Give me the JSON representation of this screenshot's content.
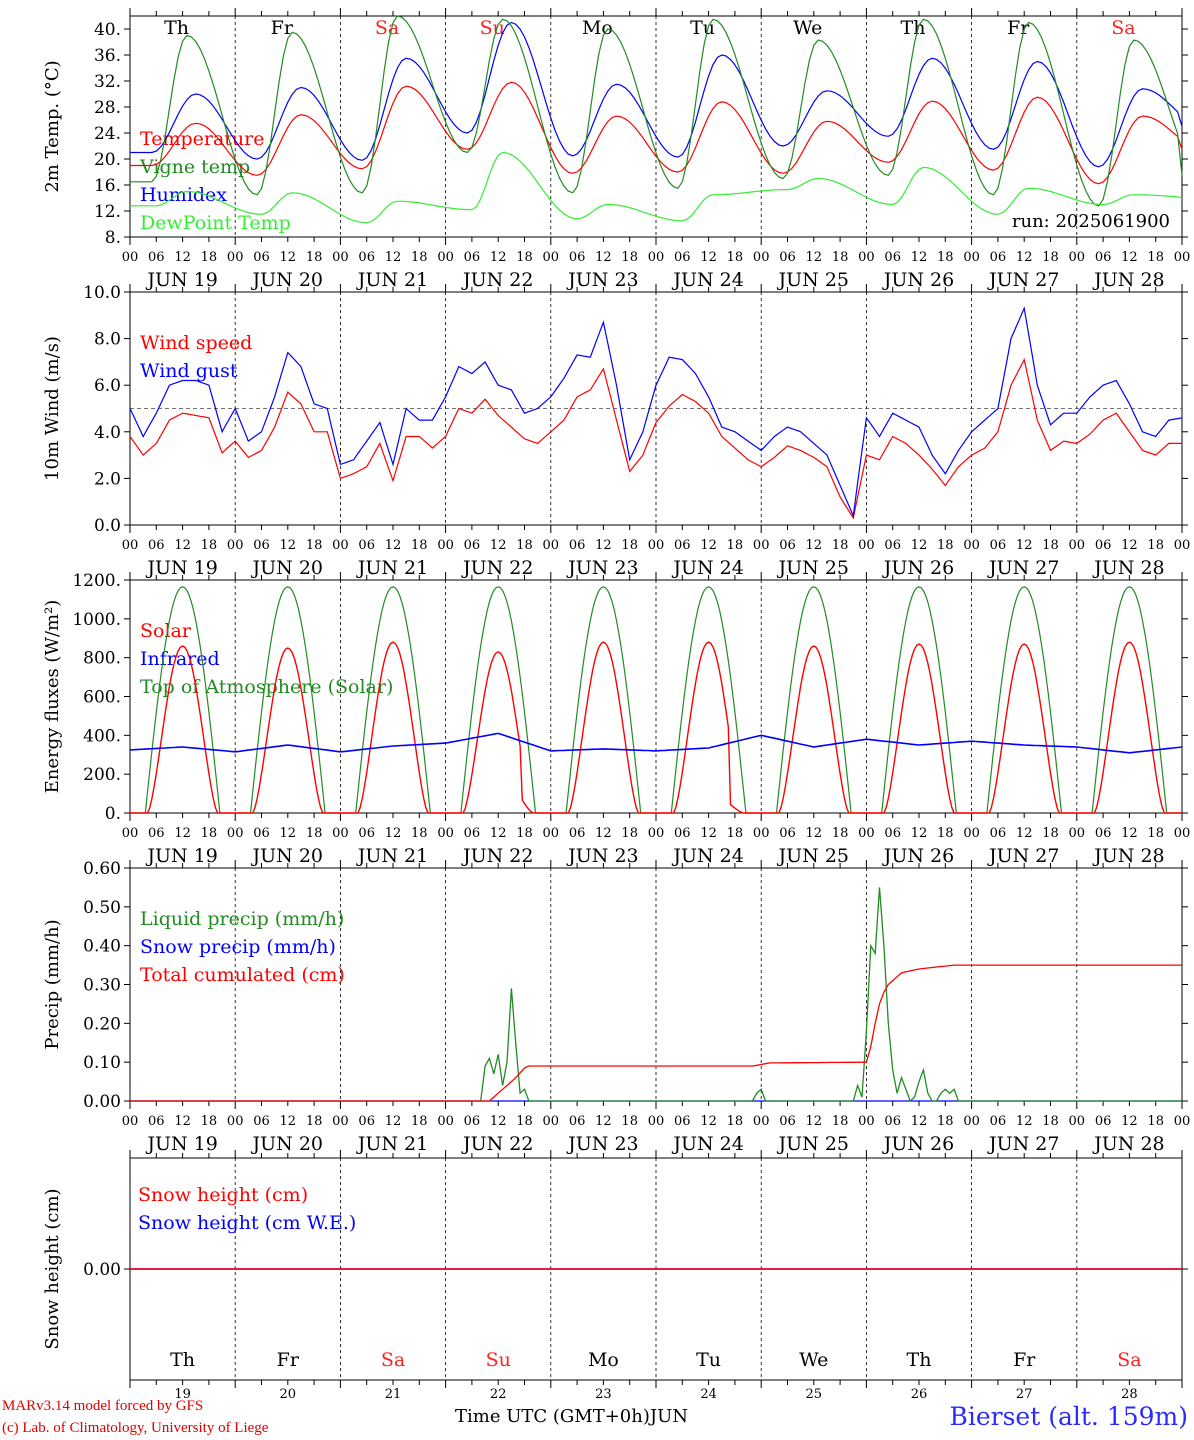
{
  "colors": {
    "red": "#ff0000",
    "blue": "#0000ff",
    "green": "#228b22",
    "lime": "#33ee33",
    "weekend": "#ff2020",
    "text": "#000000"
  },
  "days": {
    "weekdays": [
      "Th",
      "Fr",
      "Sa",
      "Su",
      "Mo",
      "Tu",
      "We",
      "Th",
      "Fr",
      "Sa"
    ],
    "weekend_flags": [
      false,
      false,
      true,
      true,
      false,
      false,
      false,
      false,
      false,
      true
    ],
    "dates": [
      "JUN 19",
      "JUN 20",
      "JUN 21",
      "JUN 22",
      "JUN 23",
      "JUN 24",
      "JUN 25",
      "JUN 26",
      "JUN 27",
      "JUN 28"
    ],
    "day_numbers": [
      "19",
      "20",
      "21",
      "22",
      "23",
      "24",
      "25",
      "26",
      "27",
      "28"
    ],
    "hour_ticks": [
      "00",
      "06",
      "12",
      "18"
    ],
    "final_tick": "00"
  },
  "footer": {
    "model_line": "MARv3.14 model forced by GFS",
    "lab_line": "(c) Lab. of Climatology, University of Liege",
    "time_label": "Time UTC (GMT+0h)",
    "month": "JUN",
    "station": "Bierset (alt. 159m)"
  },
  "chart_data": [
    {
      "type": "line",
      "ylabel": "2m Temp. (°C)",
      "ylim": [
        8,
        42
      ],
      "yticks": [
        "8.",
        "12.",
        "16.",
        "20.",
        "24.",
        "28.",
        "32.",
        "36.",
        "40."
      ],
      "run_label": "run: 2025061900",
      "x_unit": "hours since JUN 19 00 UTC",
      "legend": [
        "Temperature",
        "Vigne temp",
        "Humidex",
        "DewPoint Temp"
      ],
      "series": [
        {
          "name": "Temperature",
          "color": "red",
          "daily_min": [
            19.0,
            17.5,
            18.5,
            21.5,
            17.8,
            18.0,
            17.8,
            19.5,
            18.3,
            16.2
          ],
          "daily_max": [
            25.5,
            26.8,
            31.2,
            31.8,
            26.6,
            28.8,
            25.8,
            28.9,
            29.5,
            26.6
          ],
          "final": 21.5
        },
        {
          "name": "Humidex",
          "color": "blue",
          "daily_min": [
            21.0,
            20.0,
            19.8,
            24.0,
            20.5,
            20.3,
            22.0,
            23.5,
            21.5,
            18.8
          ],
          "daily_max": [
            30.0,
            31.0,
            35.5,
            41.0,
            31.5,
            36.0,
            30.5,
            35.5,
            35.0,
            30.8
          ],
          "final": 25.0
        },
        {
          "name": "Vigne temp",
          "color": "green",
          "daily_min": [
            16.5,
            14.5,
            14.8,
            21.0,
            14.8,
            15.5,
            17.0,
            17.5,
            14.5,
            12.8
          ],
          "daily_max": [
            39.0,
            39.5,
            42.0,
            41.5,
            40.0,
            41.5,
            38.3,
            41.5,
            41.0,
            38.3
          ],
          "final": 17.5
        },
        {
          "name": "DewPoint Temp",
          "color": "lime",
          "daily_min": [
            12.8,
            11.5,
            10.2,
            12.2,
            10.8,
            10.5,
            15.3,
            13.0,
            11.5,
            13.0
          ],
          "daily_max": [
            15.0,
            14.8,
            13.5,
            21.0,
            13.0,
            14.5,
            17.0,
            18.7,
            15.5,
            14.5
          ],
          "final": 14.0
        }
      ]
    },
    {
      "type": "line",
      "ylabel": "10m Wind (m/s)",
      "ylim": [
        0,
        10
      ],
      "yticks": [
        "0.0",
        "2.0",
        "4.0",
        "6.0",
        "8.0",
        "10.0"
      ],
      "reference_line": 5.0,
      "legend": [
        "Wind speed",
        "Wind gust"
      ],
      "series": [
        {
          "name": "Wind speed",
          "color": "red",
          "x": [
            0,
            3,
            6,
            9,
            12,
            15,
            18,
            21,
            24,
            27,
            30,
            33,
            36,
            39,
            42,
            45,
            48,
            51,
            54,
            57,
            60,
            63,
            66,
            69,
            72,
            75,
            78,
            81,
            84,
            87,
            90,
            93,
            96,
            99,
            102,
            105,
            108,
            111,
            114,
            117,
            120,
            123,
            126,
            129,
            132,
            135,
            138,
            141,
            144,
            147,
            150,
            153,
            156,
            159,
            162,
            165,
            168,
            171,
            174,
            177,
            180,
            183,
            186,
            189,
            192,
            195,
            198,
            201,
            204,
            207,
            210,
            213,
            216,
            219,
            222,
            225,
            228,
            231,
            234,
            237,
            240
          ],
          "values": [
            3.8,
            3.0,
            3.5,
            4.5,
            4.8,
            4.7,
            4.6,
            3.1,
            3.6,
            2.9,
            3.2,
            4.2,
            5.7,
            5.2,
            4.0,
            4.0,
            2.0,
            2.2,
            2.5,
            3.5,
            1.9,
            3.8,
            3.8,
            3.3,
            3.8,
            5.0,
            4.8,
            5.4,
            4.7,
            4.2,
            3.7,
            3.5,
            4.0,
            4.5,
            5.5,
            5.8,
            6.7,
            4.5,
            2.3,
            3.0,
            4.4,
            5.1,
            5.6,
            5.3,
            4.8,
            3.8,
            3.3,
            2.8,
            2.5,
            2.9,
            3.4,
            3.2,
            2.9,
            2.5,
            1.2,
            0.3,
            3.0,
            2.8,
            3.8,
            3.5,
            3.0,
            2.4,
            1.7,
            2.5,
            3.0,
            3.3,
            4.0,
            6.0,
            7.1,
            4.5,
            3.2,
            3.6,
            3.5,
            3.9,
            4.5,
            4.8,
            4.0,
            3.2,
            3.0,
            3.5,
            3.5
          ]
        },
        {
          "name": "Wind gust",
          "color": "blue",
          "x": [
            0,
            3,
            6,
            9,
            12,
            15,
            18,
            21,
            24,
            27,
            30,
            33,
            36,
            39,
            42,
            45,
            48,
            51,
            54,
            57,
            60,
            63,
            66,
            69,
            72,
            75,
            78,
            81,
            84,
            87,
            90,
            93,
            96,
            99,
            102,
            105,
            108,
            111,
            114,
            117,
            120,
            123,
            126,
            129,
            132,
            135,
            138,
            141,
            144,
            147,
            150,
            153,
            156,
            159,
            162,
            165,
            168,
            171,
            174,
            177,
            180,
            183,
            186,
            189,
            192,
            195,
            198,
            201,
            204,
            207,
            210,
            213,
            216,
            219,
            222,
            225,
            228,
            231,
            234,
            237,
            240
          ],
          "values": [
            5.0,
            3.8,
            4.8,
            6.0,
            6.2,
            6.2,
            6.0,
            4.0,
            5.0,
            3.6,
            4.0,
            5.5,
            7.4,
            6.8,
            5.2,
            5.0,
            2.6,
            2.8,
            3.6,
            4.4,
            2.6,
            5.0,
            4.5,
            4.5,
            5.5,
            6.8,
            6.5,
            7.0,
            6.0,
            5.8,
            4.8,
            5.0,
            5.5,
            6.3,
            7.3,
            7.2,
            8.7,
            6.0,
            2.8,
            4.0,
            6.0,
            7.2,
            7.1,
            6.5,
            5.5,
            4.2,
            4.0,
            3.6,
            3.2,
            3.8,
            4.2,
            4.0,
            3.5,
            3.0,
            1.7,
            0.4,
            4.6,
            3.8,
            4.8,
            4.5,
            4.2,
            3.0,
            2.2,
            3.2,
            4.0,
            4.5,
            5.0,
            8.0,
            9.3,
            6.0,
            4.3,
            4.8,
            4.8,
            5.5,
            6.0,
            6.2,
            5.2,
            4.0,
            3.8,
            4.5,
            4.6
          ]
        }
      ]
    },
    {
      "type": "line",
      "ylabel": "Energy fluxes (W/m²)",
      "ylim": [
        0,
        1200
      ],
      "yticks": [
        "0.",
        "200.",
        "400.",
        "600.",
        "800.",
        "1000.",
        "1200."
      ],
      "legend": [
        "Solar",
        "Infrared",
        "Top of Atmosphere (Solar)"
      ],
      "series": [
        {
          "name": "Solar",
          "color": "red",
          "daily_peak": [
            860,
            850,
            880,
            830,
            880,
            880,
            860,
            870,
            870,
            880
          ],
          "note": "drops near 22 18h and 24 18h"
        },
        {
          "name": "Infrared",
          "color": "blue",
          "x": [
            0,
            12,
            24,
            36,
            48,
            60,
            72,
            84,
            96,
            108,
            120,
            132,
            144,
            156,
            168,
            180,
            192,
            204,
            216,
            228,
            240
          ],
          "values": [
            325,
            340,
            315,
            350,
            315,
            345,
            360,
            410,
            320,
            330,
            320,
            335,
            400,
            340,
            380,
            350,
            370,
            350,
            340,
            310,
            340
          ]
        },
        {
          "name": "Top of Atmosphere (Solar)",
          "color": "green",
          "daily_peak": [
            1165,
            1165,
            1165,
            1165,
            1165,
            1165,
            1165,
            1165,
            1165,
            1165
          ]
        }
      ]
    },
    {
      "type": "line",
      "ylabel": "Precip (mm/h)",
      "ylim": [
        0,
        0.6
      ],
      "yticks": [
        "0.00",
        "0.10",
        "0.20",
        "0.30",
        "0.40",
        "0.50",
        "0.60"
      ],
      "legend": [
        "Liquid precip (mm/h)",
        "Snow precip (mm/h)",
        "Total cumulated (cm)"
      ],
      "series": [
        {
          "name": "Liquid precip (mm/h)",
          "color": "green",
          "x": [
            0,
            80,
            81,
            82,
            83,
            84,
            85,
            86,
            87,
            88,
            89,
            90,
            91,
            142,
            143,
            144,
            145,
            165,
            166,
            167,
            168,
            169,
            170,
            171,
            172,
            173,
            174,
            175,
            176,
            177,
            178,
            179,
            180,
            181,
            182,
            183,
            184,
            185,
            186,
            187,
            188,
            189,
            190,
            240
          ],
          "values": [
            0,
            0,
            0.09,
            0.11,
            0.07,
            0.12,
            0.04,
            0.1,
            0.29,
            0.15,
            0.02,
            0.03,
            0,
            0,
            0.02,
            0.03,
            0,
            0,
            0.04,
            0.01,
            0.18,
            0.4,
            0.38,
            0.55,
            0.4,
            0.2,
            0.08,
            0.02,
            0.06,
            0.03,
            0,
            0.01,
            0.05,
            0.08,
            0.02,
            0,
            0,
            0.02,
            0.03,
            0.02,
            0.03,
            0,
            0,
            0
          ]
        },
        {
          "name": "Snow precip (mm/h)",
          "color": "blue",
          "x": [
            0,
            240
          ],
          "values": [
            0,
            0
          ]
        },
        {
          "name": "Total cumulated (cm)",
          "color": "red",
          "x": [
            0,
            82,
            84,
            86,
            88,
            90,
            91,
            142,
            146,
            168,
            169,
            170,
            171,
            172,
            173,
            174,
            175,
            176,
            178,
            180,
            184,
            188,
            192,
            240
          ],
          "values": [
            0,
            0,
            0.02,
            0.04,
            0.06,
            0.085,
            0.09,
            0.09,
            0.098,
            0.1,
            0.14,
            0.2,
            0.25,
            0.28,
            0.3,
            0.31,
            0.32,
            0.33,
            0.335,
            0.34,
            0.345,
            0.35,
            0.35,
            0.35
          ]
        }
      ]
    },
    {
      "type": "line",
      "ylabel": "Snow height (cm)",
      "yticks": [
        "0.00"
      ],
      "legend": [
        "Snow height (cm)",
        "Snow height (cm W.E.)"
      ],
      "series": [
        {
          "name": "Snow height (cm)",
          "color": "red",
          "x": [
            0,
            240
          ],
          "values": [
            0,
            0
          ]
        },
        {
          "name": "Snow height (cm W.E.)",
          "color": "blue",
          "x": [
            0,
            240
          ],
          "values": [
            0,
            0
          ]
        }
      ]
    }
  ]
}
